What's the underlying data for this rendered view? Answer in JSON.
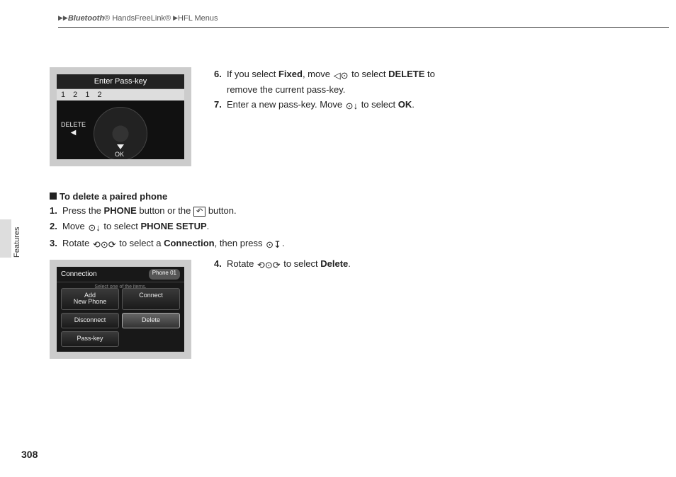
{
  "header": {
    "crumb1": "Bluetooth",
    "reg": "®",
    "crumb2": "HandsFreeLink",
    "crumb3": "HFL Menus"
  },
  "side_tab": "Features",
  "page_number": "308",
  "steps_a": {
    "s6": {
      "num": "6.",
      "before": "If you select ",
      "fixed": "Fixed",
      "mid": ", move ",
      "after": " to select ",
      "delete": "DELETE",
      "tail": " to remove the current pass-key."
    },
    "s7": {
      "num": "7.",
      "before": "Enter a new pass-key. Move ",
      "mid": " to select ",
      "ok": "OK",
      "tail": "."
    }
  },
  "heading": "To delete a paired phone",
  "steps_b": {
    "s1": {
      "num": "1.",
      "a": "Press the ",
      "phone": "PHONE",
      "b": " button or the ",
      "c": " button."
    },
    "s2": {
      "num": "2.",
      "a": "Move ",
      "b": " to select ",
      "ps": "PHONE SETUP",
      "c": "."
    },
    "s3": {
      "num": "3.",
      "a": "Rotate ",
      "b": " to select a ",
      "conn": "Connection",
      "c": ", then press ",
      "d": "."
    },
    "s4": {
      "num": "4.",
      "a": "Rotate ",
      "b": " to select ",
      "del": "Delete",
      "c": "."
    }
  },
  "shot1": {
    "title": "Enter Pass-key",
    "pass": "1 2 1 2",
    "delete": "DELETE",
    "ok": "OK"
  },
  "shot2": {
    "title": "Connection",
    "phone": "Phone 01",
    "sub": "Select one of the items.",
    "btn_add": "Add\nNew Phone",
    "btn_connect": "Connect",
    "btn_disconnect": "Disconnect",
    "btn_delete": "Delete",
    "btn_passkey": "Pass-key"
  },
  "icons": {
    "leftsel": "◁⊙",
    "downsel": "⊙↓",
    "rotate": "⟲⊙⟳",
    "press": "⊙↧",
    "phonebtn": "↶"
  }
}
